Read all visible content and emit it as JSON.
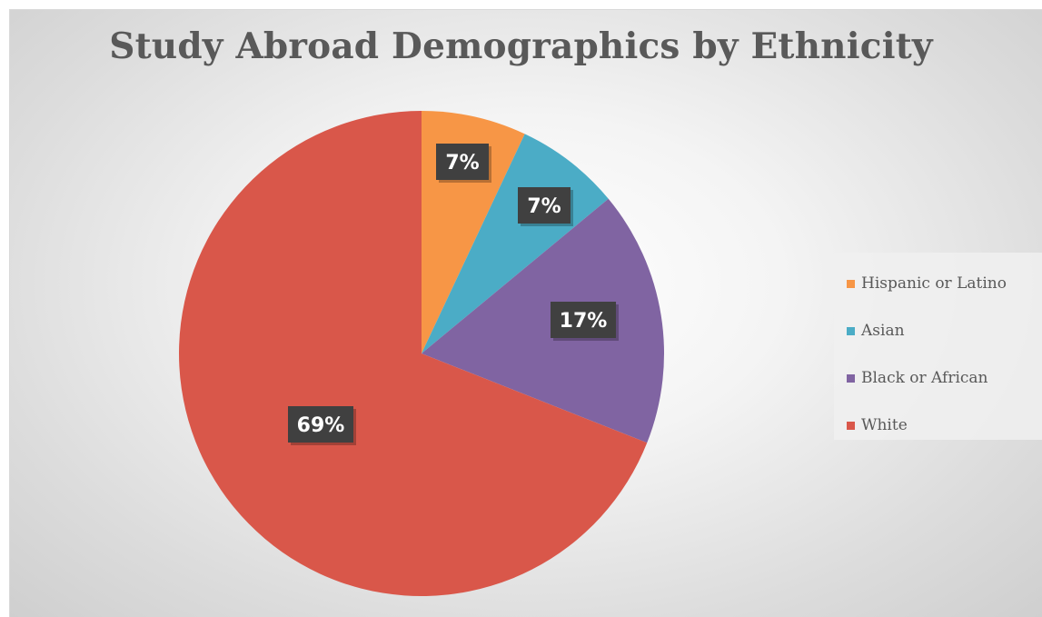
{
  "chart_data": {
    "type": "pie",
    "title": "Study Abroad Demographics by Ethnicity",
    "categories": [
      "Hispanic or Latino",
      "Asian",
      "Black or African",
      "White"
    ],
    "values": [
      7,
      7,
      17,
      69
    ],
    "data_labels": [
      "7%",
      "7%",
      "17%",
      "69%"
    ],
    "colors": [
      "#F79646",
      "#4BACC6",
      "#8064A2",
      "#D9574A"
    ],
    "legend": "right",
    "label_box_color": "#404040",
    "label_text_color": "#ffffff"
  }
}
